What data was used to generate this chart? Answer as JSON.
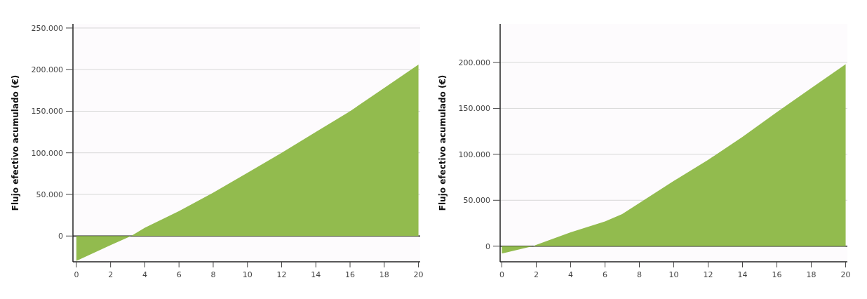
{
  "chart_data": [
    {
      "type": "area",
      "ylabel": "Flujo efectivo acumulado (€)",
      "x": [
        0,
        2,
        3.2,
        4,
        6,
        8,
        10,
        12,
        14,
        16,
        18,
        20
      ],
      "series": [
        {
          "color": "#92bb4e",
          "values": [
            -30000,
            -11000,
            0,
            10000,
            30000,
            52000,
            76000,
            100000,
            125000,
            150000,
            178000,
            206000
          ]
        }
      ],
      "xlim": [
        -0.2,
        20.1
      ],
      "xticks": [
        0,
        2,
        4,
        6,
        8,
        10,
        12,
        14,
        16,
        18,
        20
      ],
      "ylim": [
        -31000,
        255000
      ],
      "yticks": [
        0,
        {
          "value": 50000,
          "label": "50.000"
        },
        {
          "value": 100000,
          "label": "100.000"
        },
        {
          "value": 150000,
          "label": "150.000"
        },
        {
          "value": 200000,
          "label": "200.000"
        },
        {
          "value": 250000,
          "label": "250.000"
        }
      ],
      "grid": "y"
    },
    {
      "type": "area",
      "ylabel": "Flujo efectivo acumulado (€)",
      "x": [
        0,
        1.8,
        4,
        6,
        7,
        8,
        10,
        12,
        14,
        16,
        18,
        20
      ],
      "series": [
        {
          "color": "#92bb4e",
          "values": [
            -8000,
            0,
            15000,
            27000,
            35000,
            47000,
            71000,
            94000,
            119000,
            146000,
            172000,
            198000
          ]
        }
      ],
      "xlim": [
        -0.1,
        20.1
      ],
      "xticks": [
        0,
        2,
        4,
        6,
        8,
        10,
        12,
        14,
        16,
        18,
        20
      ],
      "ylim": [
        -17000,
        242000
      ],
      "yticks": [
        0,
        {
          "value": 50000,
          "label": "50.000"
        },
        {
          "value": 100000,
          "label": "100.000"
        },
        {
          "value": 150000,
          "label": "150.000"
        },
        {
          "value": 200000,
          "label": "200.000"
        }
      ],
      "grid": "y"
    }
  ]
}
